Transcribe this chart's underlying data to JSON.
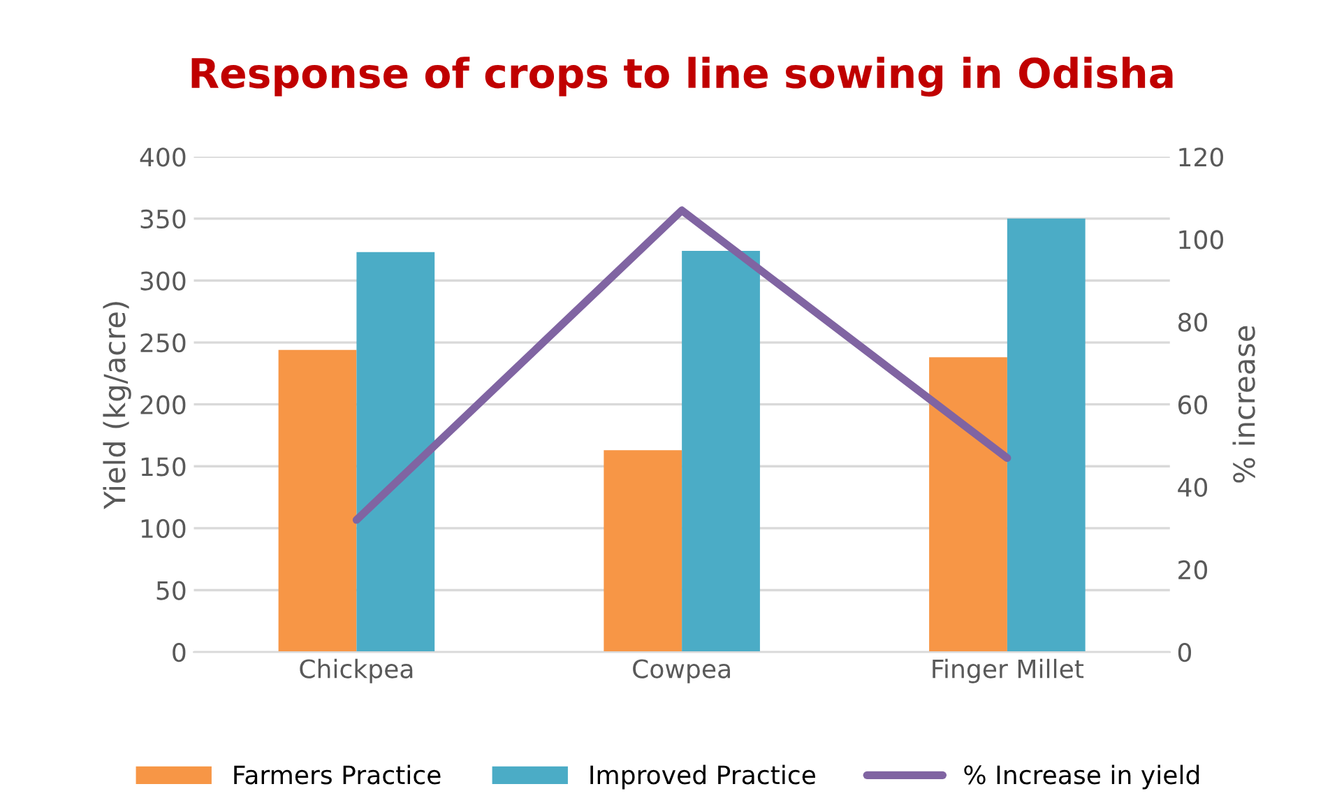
{
  "chart_data": {
    "type": "bar",
    "title": "Response of crops to line sowing in Odisha",
    "ylabel": "Yield (kg/acre)",
    "y2label": "% increase",
    "categories": [
      "Chickpea",
      "Cowpea",
      "Finger Millet"
    ],
    "series": [
      {
        "name": "Farmers Practice",
        "color": "#f79646",
        "values": [
          244,
          163,
          238
        ]
      },
      {
        "name": "Improved Practice",
        "color": "#4bacc6",
        "values": [
          323,
          324,
          350
        ]
      },
      {
        "name": "% Increase in yield",
        "color": "#8064a2",
        "type": "line",
        "axis": "y2",
        "values": [
          32,
          107,
          47
        ]
      }
    ],
    "ylim": [
      0,
      400
    ],
    "yticks": [
      0,
      50,
      100,
      150,
      200,
      250,
      300,
      350,
      400
    ],
    "y2lim": [
      0,
      120
    ],
    "y2ticks": [
      0,
      20,
      40,
      60,
      80,
      100,
      120
    ],
    "grid": "y",
    "legend": "bottom",
    "marker": "none",
    "line_style": "solid"
  }
}
